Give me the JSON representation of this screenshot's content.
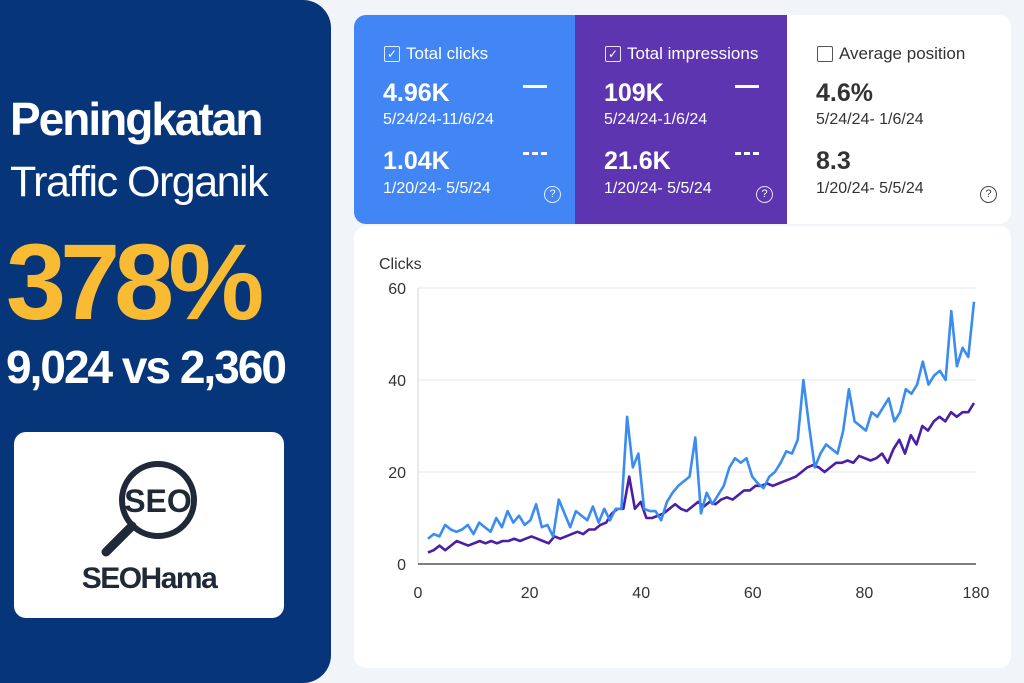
{
  "headline": {
    "title_line1": "Peningkatan",
    "title_line2": "Traffic Organik",
    "percent": "378%",
    "comparison": "9,024 vs 2,360"
  },
  "logo": {
    "icon": "magnifier-seo-icon",
    "icon_text": "SEO",
    "brand": "SEOHama"
  },
  "metrics": [
    {
      "label": "Total clicks",
      "checked": true,
      "current_value": "4.96K",
      "current_range": "5/24/24-11/6/24",
      "previous_value": "1.04K",
      "previous_range": "1/20/24- 5/5/24",
      "color": "#4285f4"
    },
    {
      "label": "Total impressions",
      "checked": true,
      "current_value": "109K",
      "current_range": "5/24/24-1/6/24",
      "previous_value": "21.6K",
      "previous_range": "1/20/24- 5/5/24",
      "color": "#5e35b1"
    },
    {
      "label": "Average position",
      "checked": false,
      "current_value": "4.6%",
      "current_range": "5/24/24- 1/6/24",
      "previous_value": "8.3",
      "previous_range": "1/20/24- 5/5/24",
      "color": "#ffffff"
    }
  ],
  "check_mark": "✓",
  "help_mark": "?",
  "chart_data": {
    "type": "line",
    "title": "",
    "ylabel": "Clicks",
    "xlabel": "",
    "ylim": [
      0,
      60
    ],
    "yticks": [
      "0",
      "20",
      "40",
      "60"
    ],
    "xticks": [
      "0",
      "20",
      "40",
      "60",
      "80",
      "180"
    ],
    "grid": true,
    "legend": "none",
    "series": [
      {
        "name": "Total clicks (current)",
        "color": "#3b8cf0",
        "values": [
          5.5,
          6.5,
          6,
          8.5,
          7.5,
          7,
          7.5,
          8.5,
          6.5,
          9,
          8,
          7,
          10,
          8,
          11.5,
          9,
          10.5,
          8.5,
          9.5,
          13,
          8,
          8.5,
          6,
          14,
          11,
          8,
          11.5,
          10.5,
          9.5,
          12.5,
          9,
          12,
          9.5,
          12,
          12,
          32,
          21,
          24,
          12,
          11.5,
          11.5,
          9.5,
          13.5,
          15.5,
          17,
          18,
          19,
          27.5,
          11,
          15.5,
          13,
          15,
          17,
          21,
          23,
          22,
          23,
          19,
          17.5,
          16.5,
          19,
          20,
          22,
          24.5,
          24,
          27,
          40,
          30,
          21,
          24,
          26,
          25,
          24,
          29,
          38,
          31,
          30,
          29,
          33,
          32,
          34,
          36,
          31,
          33,
          38,
          37,
          39,
          44,
          39,
          41,
          42,
          40,
          55,
          43,
          47,
          45,
          57
        ]
      },
      {
        "name": "Total clicks (previous)",
        "color": "#4a1fa8",
        "values": [
          2.5,
          3,
          4,
          3,
          4,
          5,
          4.5,
          4,
          4.5,
          5,
          4.5,
          5,
          4.5,
          5,
          5,
          5.5,
          5,
          5.5,
          6,
          5.5,
          5,
          4.5,
          6,
          5.5,
          6,
          6.5,
          7,
          6.5,
          7.5,
          7.5,
          8.5,
          9,
          11,
          12,
          12,
          19,
          12,
          13.5,
          10,
          10,
          10.5,
          11,
          12,
          13,
          12,
          11.5,
          12.5,
          13.5,
          12.5,
          13.5,
          13,
          14,
          14.5,
          14,
          15,
          16,
          16,
          17,
          17,
          17.5,
          17,
          17.5,
          18,
          18.5,
          19,
          20,
          21,
          21.5,
          21,
          20,
          21,
          22,
          22,
          22.5,
          22,
          23.5,
          23,
          22.5,
          23,
          24,
          22,
          25,
          27,
          24,
          28,
          26,
          30,
          29,
          31,
          32,
          31,
          33,
          32,
          33,
          33,
          35
        ]
      }
    ]
  }
}
